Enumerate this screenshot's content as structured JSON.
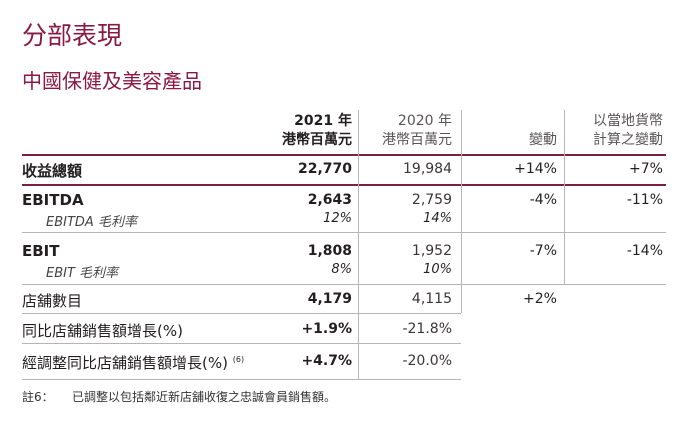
{
  "section_title": "分部表現",
  "sub_title": "中國保健及美容產品",
  "header": {
    "cur_year": "2021 年",
    "cur_unit": "港幣百萬元",
    "prev_year": "2020 年",
    "prev_unit": "港幣百萬元",
    "change": "變動",
    "local_line1": "以當地貨幣",
    "local_line2": "計算之變動"
  },
  "rows": [
    {
      "label": "收益總額",
      "cur": "22,770",
      "prev": "19,984",
      "change": "+14%",
      "local": "+7%"
    },
    {
      "label": "EBITDA",
      "cur": "2,643",
      "prev": "2,759",
      "change": "-4%",
      "local": "-11%",
      "sub_label": "EBITDA 毛利率",
      "sub_cur": "12%",
      "sub_prev": "14%"
    },
    {
      "label": "EBIT",
      "cur": "1,808",
      "prev": "1,952",
      "change": "-7%",
      "local": "-14%",
      "sub_label": "EBIT 毛利率",
      "sub_cur": "8%",
      "sub_prev": "10%"
    },
    {
      "label": "店舖數目",
      "cur": "4,179",
      "prev": "4,115",
      "change": "+2%"
    },
    {
      "label": "同比店舖銷售額增長(%)",
      "cur": "+1.9%",
      "prev": "-21.8%"
    },
    {
      "label": "經調整同比店舖銷售額增長(%)",
      "footnote_ref": "(6)",
      "cur": "+4.7%",
      "prev": "-20.0%"
    }
  ],
  "note": {
    "ref": "註6：",
    "text": "已調整以包括鄰近新店舖收復之忠誠會員銷售額。"
  },
  "colors": {
    "accent": "#8a1a44",
    "rule_dark": "#7a1f44",
    "rule_light": "#b8b4b6"
  }
}
